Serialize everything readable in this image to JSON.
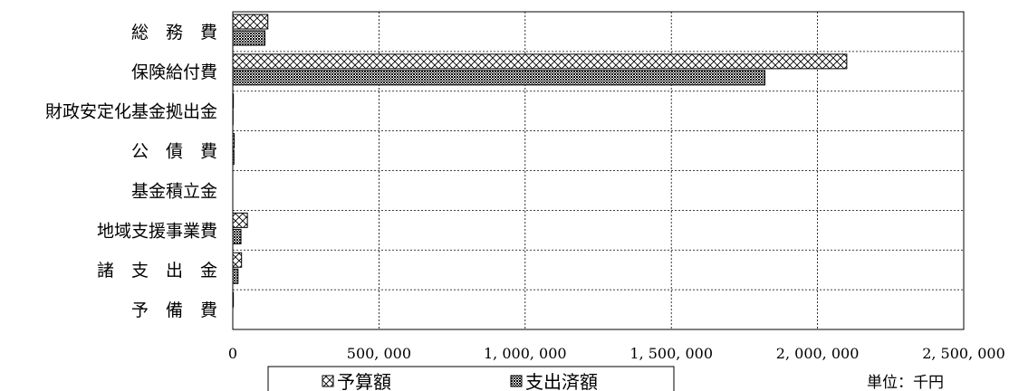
{
  "chart_data": {
    "type": "bar",
    "orientation": "horizontal",
    "categories": [
      "総　務　費",
      "保険給付費",
      "財政安定化基金拠出金",
      "公　債　費",
      "基金積立金",
      "地域支援事業費",
      "諸　支　出　金",
      "予　備　費"
    ],
    "series": [
      {
        "name": "予算額",
        "values": [
          120000,
          2100000,
          2000,
          5000,
          0,
          50000,
          30000,
          2000
        ],
        "pattern": "crosshatch"
      },
      {
        "name": "支出済額",
        "values": [
          110000,
          1820000,
          1000,
          4000,
          0,
          28000,
          18000,
          0
        ],
        "pattern": "dense-dots"
      }
    ],
    "xlim": [
      0,
      2500000
    ],
    "xticks": [
      0,
      500000,
      1000000,
      1500000,
      2000000,
      2500000
    ],
    "xtick_labels": [
      "0",
      "500, 000",
      "1, 000, 000",
      "1, 500, 000",
      "2, 000, 000",
      "2, 500, 000"
    ],
    "grid": true,
    "legend_position": "bottom",
    "unit": "単位：千円"
  },
  "legend": {
    "budget_label": "予算額",
    "spent_label": "支出済額"
  },
  "colors": {
    "line": "#000000",
    "grid": "#000000",
    "fill": "#ffffff"
  }
}
